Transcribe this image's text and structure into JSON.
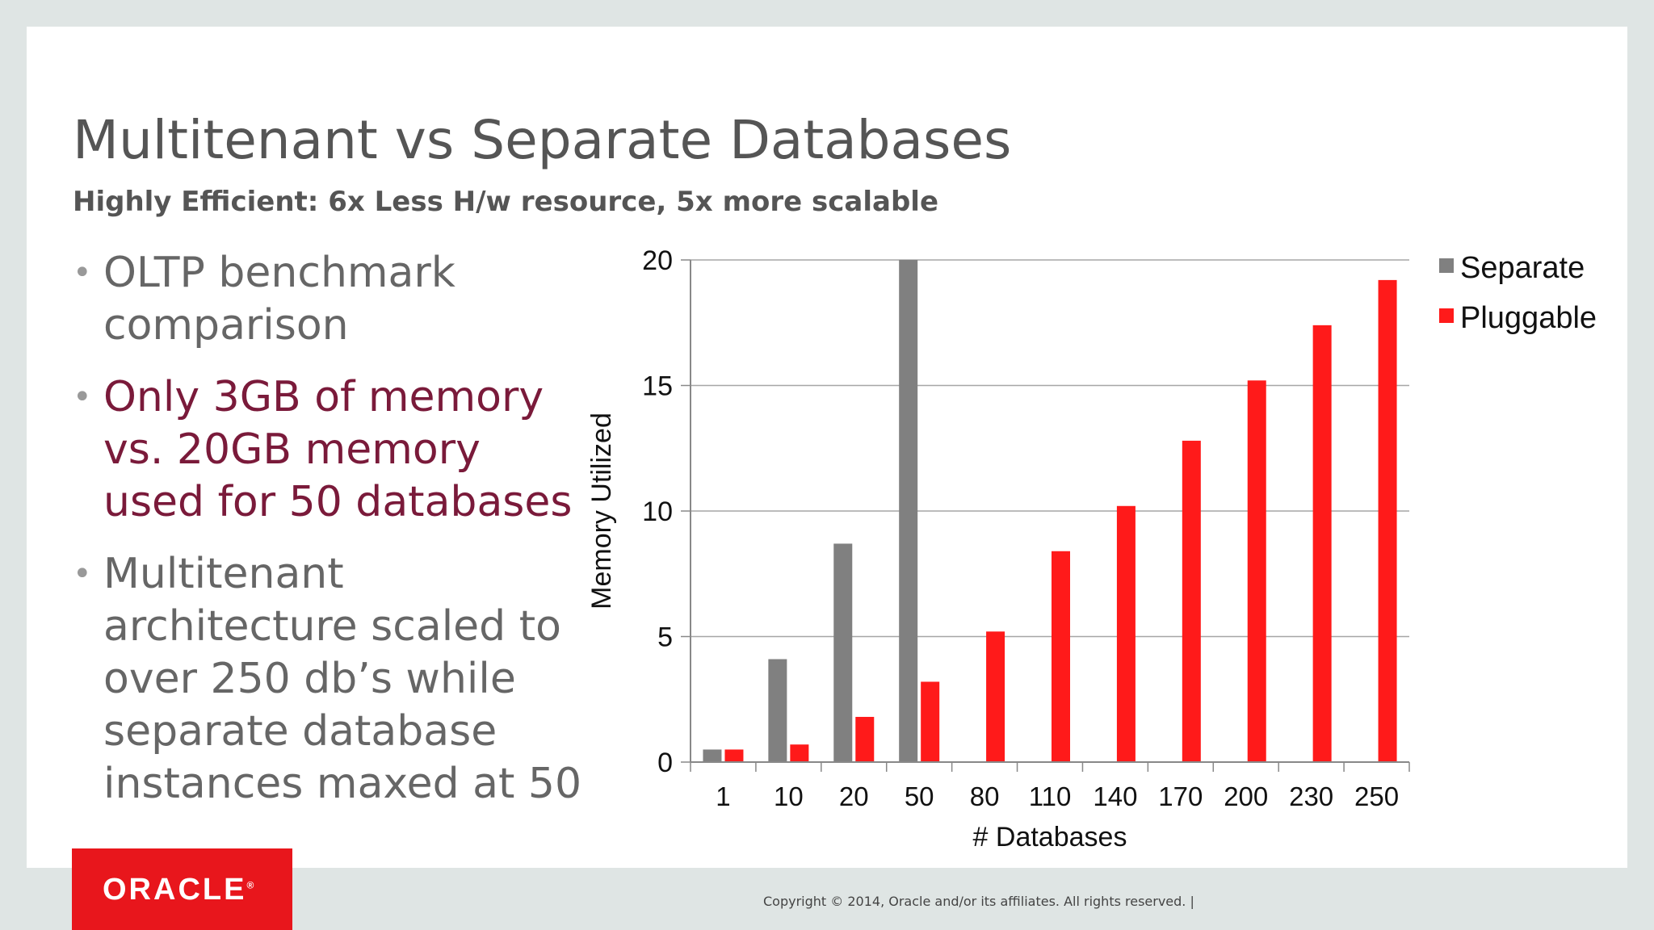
{
  "slide": {
    "title": "Multitenant vs Separate Databases",
    "subtitle": "Highly Efficient: 6x Less H/w resource, 5x more scalable",
    "bullets": [
      {
        "text": "OLTP benchmark comparison",
        "accent": false
      },
      {
        "text": "Only 3GB of memory vs. 20GB memory used for 50 databases",
        "accent": true
      },
      {
        "text": "Multitenant architecture scaled to over 250 db’s while separate database instances maxed at 50",
        "accent": false
      }
    ],
    "bullet_glyph": "•",
    "accent_color": "#7a1a3a",
    "footer": "Copyright © 2014, Oracle and/or its affiliates. All rights reserved.  |",
    "logo_text": "ORACLE",
    "logo_mark": "®",
    "logo_color": "#e8161c"
  },
  "chart_data": {
    "type": "bar",
    "categories": [
      "1",
      "10",
      "20",
      "50",
      "80",
      "110",
      "140",
      "170",
      "200",
      "230",
      "250"
    ],
    "series": [
      {
        "name": "Separate",
        "color": "#808080",
        "values": [
          0.5,
          4.1,
          8.7,
          20,
          null,
          null,
          null,
          null,
          null,
          null,
          null
        ]
      },
      {
        "name": "Pluggable",
        "color": "#ff1a1a",
        "values": [
          0.5,
          0.7,
          1.8,
          3.2,
          5.2,
          8.4,
          10.2,
          12.8,
          15.2,
          17.4,
          19.2
        ]
      }
    ],
    "xlabel": "# Databases",
    "ylabel": "Memory Utilized",
    "ylim": [
      0,
      20
    ],
    "yticks": [
      0,
      5,
      10,
      15,
      20
    ],
    "grid": true,
    "legend": "top-right"
  }
}
